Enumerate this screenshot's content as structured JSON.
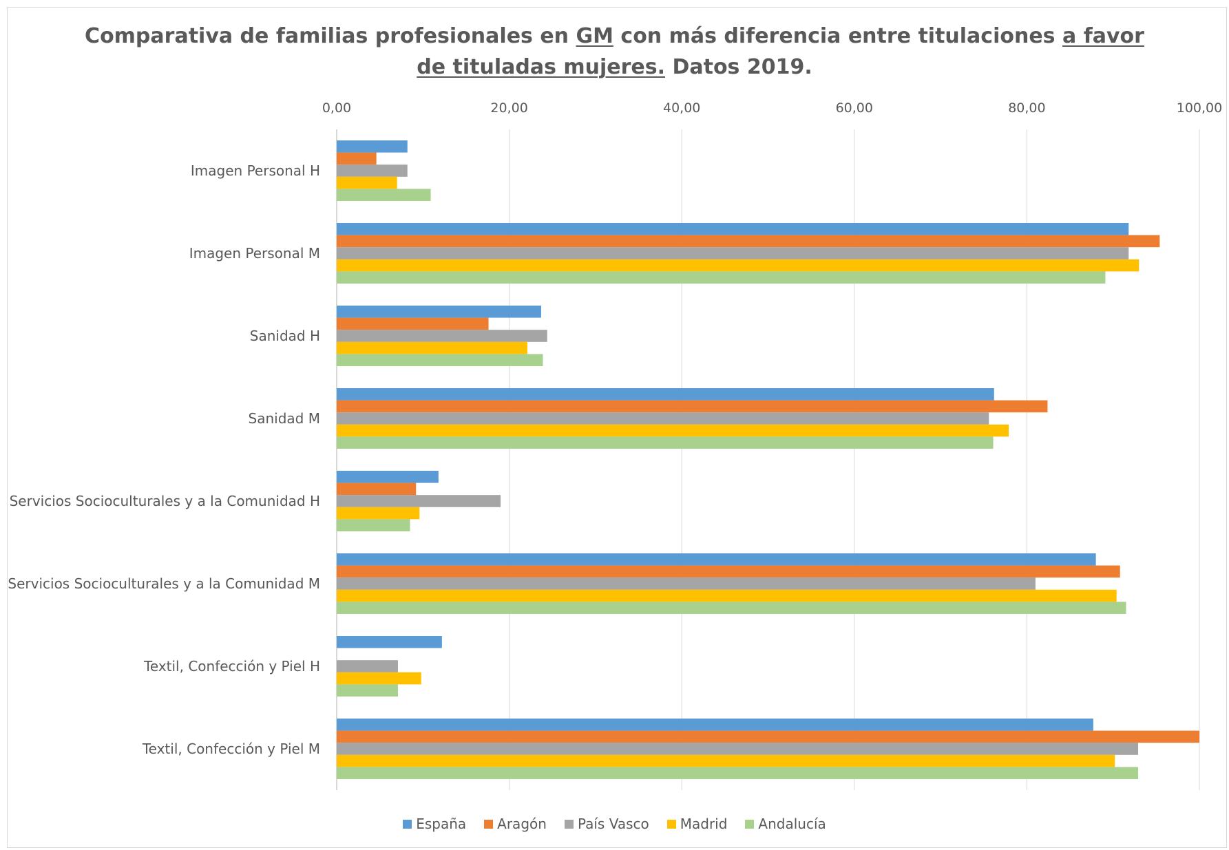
{
  "chart_data": {
    "type": "bar",
    "orientation": "horizontal",
    "title_parts": [
      [
        {
          "text": "Comparativa de familias profesionales en ",
          "underline": false
        },
        {
          "text": "GM",
          "underline": true
        },
        {
          "text": " con más diferencia entre titulaciones ",
          "underline": false
        },
        {
          "text": "a favor",
          "underline": true
        }
      ],
      [
        {
          "text": "de tituladas mujeres.",
          "underline": true
        },
        {
          "text": " Datos 2019.",
          "underline": false
        }
      ]
    ],
    "categories": [
      "Imagen Personal H",
      "Imagen Personal M",
      "Sanidad H",
      "Sanidad M",
      "Servicios Socioculturales y a la Comunidad H",
      "Servicios Socioculturales y a la Comunidad M",
      "Textil, Confección y Piel H",
      "Textil, Confección y Piel M"
    ],
    "series": [
      {
        "name": "España",
        "color": "#5b9bd5",
        "values": [
          8.2,
          91.8,
          23.7,
          76.2,
          11.8,
          88.0,
          12.2,
          87.7
        ]
      },
      {
        "name": "Aragón",
        "color": "#ed7d31",
        "values": [
          4.6,
          95.4,
          17.6,
          82.4,
          9.2,
          90.8,
          0.0,
          100.0
        ]
      },
      {
        "name": "País Vasco",
        "color": "#a5a5a5",
        "values": [
          8.2,
          91.8,
          24.4,
          75.6,
          19.0,
          81.0,
          7.1,
          92.9
        ]
      },
      {
        "name": "Madrid",
        "color": "#ffc000",
        "values": [
          7.0,
          93.0,
          22.1,
          77.9,
          9.6,
          90.4,
          9.8,
          90.2
        ]
      },
      {
        "name": "Andalucía",
        "color": "#a9d18e",
        "values": [
          10.9,
          89.1,
          23.9,
          76.1,
          8.5,
          91.5,
          7.1,
          92.9
        ]
      }
    ],
    "xlim": [
      0,
      100
    ],
    "xticks": [
      0,
      20,
      40,
      60,
      80,
      100
    ],
    "xtick_labels": [
      "0,00",
      "20,00",
      "40,00",
      "60,00",
      "80,00",
      "100,00"
    ],
    "axis_position": "top",
    "grid": true,
    "legend_position": "bottom"
  }
}
